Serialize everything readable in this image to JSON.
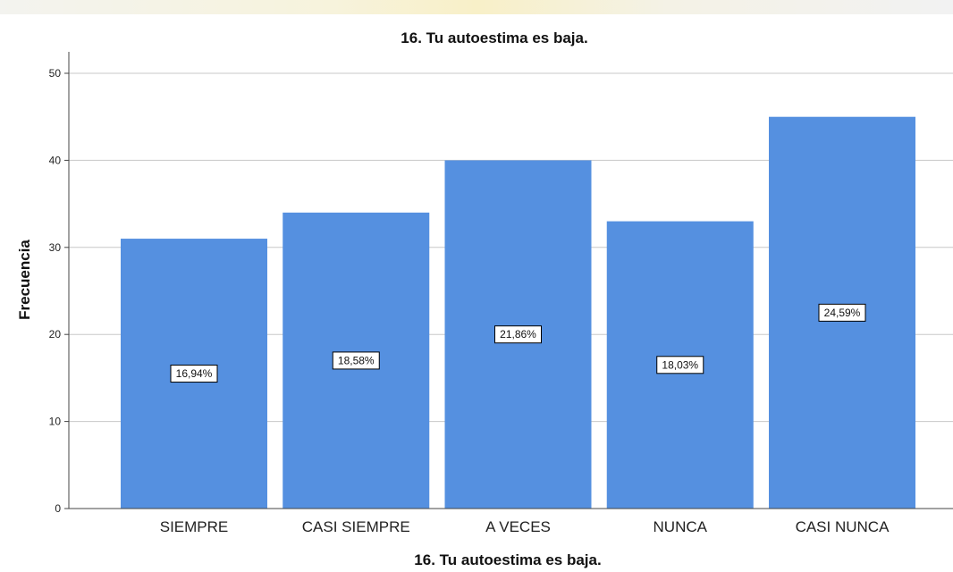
{
  "chart_data": {
    "type": "bar",
    "title": "16. Tu autoestima es baja.",
    "xlabel": "16. Tu autoestima es baja.",
    "ylabel": "Frecuencia",
    "categories": [
      "SIEMPRE",
      "CASI SIEMPRE",
      "A VECES",
      "NUNCA",
      "CASI NUNCA"
    ],
    "values": [
      31,
      34,
      40,
      33,
      45
    ],
    "percent_labels": [
      "16,94%",
      "18,58%",
      "21,86%",
      "18,03%",
      "24,59%"
    ],
    "ylim": [
      0,
      52
    ],
    "yticks": [
      0,
      10,
      20,
      30,
      40,
      50
    ],
    "grid": true,
    "legend": "none",
    "bar_color": "#5590E0",
    "label_box_border": "#000000"
  }
}
